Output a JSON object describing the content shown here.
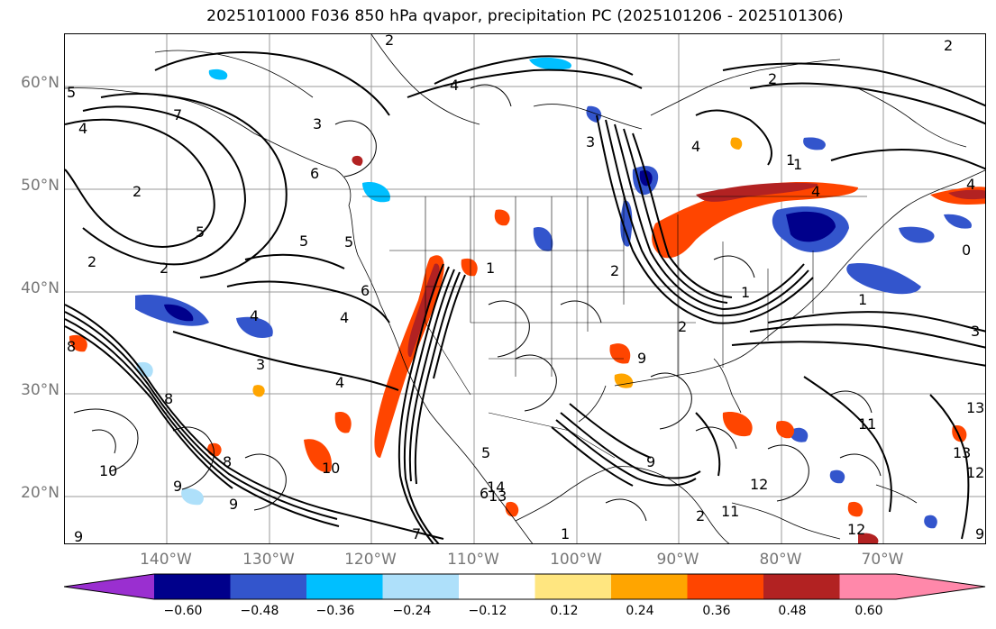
{
  "title": "2025101000 F036 850 hPa qvapor, precipitation PC (2025101206 - 2025101306)",
  "lat_labels": [
    "60°N",
    "50°N",
    "40°N",
    "30°N",
    "20°N"
  ],
  "lon_labels": [
    "140°W",
    "130°W",
    "120°W",
    "110°W",
    "100°W",
    "90°W",
    "80°W",
    "70°W"
  ],
  "contour_labels": [
    "2",
    "2",
    "2",
    "2",
    "5",
    "5",
    "3",
    "7",
    "4",
    "1",
    "6",
    "5",
    "3",
    "6",
    "4",
    "2",
    "2",
    "4",
    "3",
    "5",
    "1",
    "2",
    "1",
    "1",
    "4",
    "4",
    "3",
    "2",
    "2",
    "4",
    "11",
    "11",
    "12",
    "13",
    "12",
    "13",
    "10",
    "9",
    "8",
    "9",
    "10",
    "9",
    "8",
    "9",
    "8",
    "7",
    "4",
    "5",
    "6",
    "9",
    "13",
    "14",
    "0",
    "1",
    "1",
    "9",
    "4",
    "12"
  ],
  "colorbar": {
    "colors": [
      "#9a2fd0",
      "#00008b",
      "#3355cc",
      "#00bfff",
      "#aee0fa",
      "#ffffff",
      "#ffe680",
      "#ffa500",
      "#ff4500",
      "#b22222",
      "#ff88aa"
    ],
    "ticks": [
      "−0.60",
      "−0.48",
      "−0.36",
      "−0.24",
      "−0.12",
      "0.12",
      "0.24",
      "0.36",
      "0.48",
      "0.60"
    ]
  }
}
